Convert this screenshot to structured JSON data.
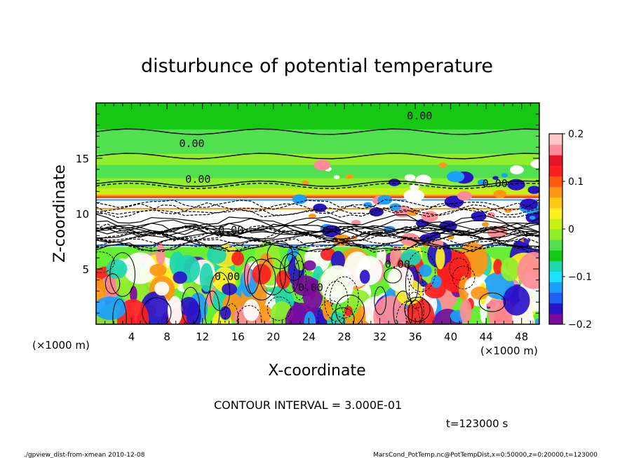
{
  "chart_data": {
    "type": "heatmap",
    "title": "disturbunce of potential temperature",
    "xlabel": "X-coordinate",
    "ylabel": "Z-coordinate",
    "x_unit": "(×1000 m)",
    "y_unit": "(×1000 m)",
    "xlim": [
      0,
      50
    ],
    "ylim": [
      0,
      20
    ],
    "x_ticks": [
      4,
      8,
      12,
      16,
      20,
      24,
      28,
      32,
      36,
      40,
      44,
      48
    ],
    "y_ticks": [
      5,
      10,
      15
    ],
    "colorbar": {
      "range": [
        -0.2,
        0.2
      ],
      "tick_values": [
        0.2,
        0.1,
        0,
        -0.1,
        -0.2
      ],
      "tick_labels": [
        "0.2",
        "0.1",
        "0",
        "−0.1",
        "−0.2"
      ],
      "colors": [
        "#7a0aa0",
        "#2a14c8",
        "#1e60f0",
        "#1aa0ff",
        "#1ee0ff",
        "#1ed6b0",
        "#14c814",
        "#50e050",
        "#90ee2a",
        "#c8f014",
        "#fff01e",
        "#ffc814",
        "#ff9614",
        "#ff5a14",
        "#ff1e1e",
        "#e61428",
        "#ff8c96",
        "#ffc8c8"
      ]
    },
    "contour_labels": [
      {
        "text": "0.00",
        "x": 10.8,
        "z": 16.0
      },
      {
        "text": "0.00",
        "x": 36.5,
        "z": 18.5
      },
      {
        "text": "0.00",
        "x": 11.5,
        "z": 12.8
      },
      {
        "text": "0.00",
        "x": 45.0,
        "z": 12.4
      },
      {
        "text": "0.00",
        "x": 15.2,
        "z": 8.2
      },
      {
        "text": "0.00",
        "x": 14.8,
        "z": 4.0
      },
      {
        "text": "0.00",
        "x": 24.2,
        "z": 3.0
      },
      {
        "text": "0.00",
        "x": 34.0,
        "z": 5.1
      }
    ],
    "contour_interval": "CONTOUR INTERVAL = 3.000E-01",
    "time_label": "t=123000 s"
  },
  "footer": {
    "left": "./gpview_dist-from-xmean  2010-12-08",
    "right": "MarsCond_PotTemp.nc@PotTempDist,x=0:50000,z=0:20000,t=123000"
  }
}
